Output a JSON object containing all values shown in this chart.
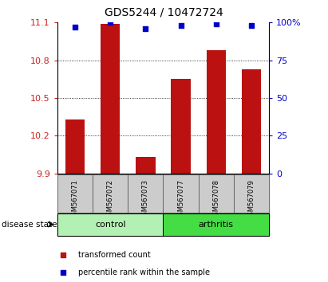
{
  "title": "GDS5244 / 10472724",
  "samples": [
    "GSM567071",
    "GSM567072",
    "GSM567073",
    "GSM567077",
    "GSM567078",
    "GSM567079"
  ],
  "transformed_counts": [
    10.33,
    11.09,
    10.03,
    10.65,
    10.88,
    10.73
  ],
  "percentile_ranks": [
    97,
    100,
    96,
    98,
    99,
    98
  ],
  "ylim_left": [
    9.9,
    11.1
  ],
  "ylim_right": [
    0,
    100
  ],
  "yticks_left": [
    9.9,
    10.2,
    10.5,
    10.8,
    11.1
  ],
  "yticks_right": [
    0,
    25,
    50,
    75,
    100
  ],
  "ytick_labels_left": [
    "9.9",
    "10.2",
    "10.5",
    "10.8",
    "11.1"
  ],
  "ytick_labels_right": [
    "0",
    "25",
    "50",
    "75",
    "100%"
  ],
  "groups": [
    {
      "label": "control",
      "n": 3,
      "color": "#b3f0b3"
    },
    {
      "label": "arthritis",
      "n": 3,
      "color": "#44dd44"
    }
  ],
  "bar_color": "#bb1111",
  "dot_color": "#0000cc",
  "bar_width": 0.55,
  "tick_bg_color": "#cccccc",
  "grid_color": "#000000",
  "legend_items": [
    {
      "label": "transformed count",
      "color": "#bb1111"
    },
    {
      "label": "percentile rank within the sample",
      "color": "#0000cc"
    }
  ],
  "disease_state_label": "disease state",
  "ylabel_left_color": "#cc2222",
  "ylabel_right_color": "#0000cc",
  "dotted_lines": [
    10.2,
    10.5,
    10.8
  ],
  "title_fontsize": 10,
  "tick_fontsize": 8,
  "label_fontsize": 7
}
